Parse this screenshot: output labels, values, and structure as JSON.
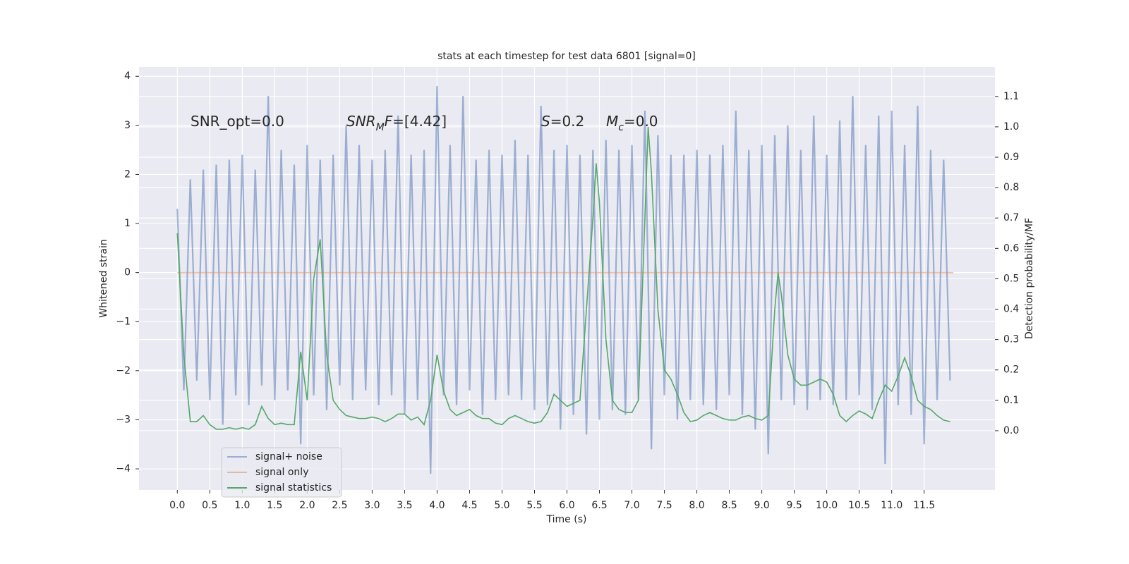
{
  "chart_data": {
    "type": "line",
    "title": "stats at each timestep for test data 6801 [signal=0]",
    "xlabel": "Time (s)",
    "ylabel": "Whitened strain",
    "y2label": "Detection probability/MF",
    "xlim": [
      -0.59,
      12.59
    ],
    "ylim": [
      -4.43,
      4.19
    ],
    "y2lim": [
      -0.195,
      1.197
    ],
    "xticks": [
      {
        "value": 0,
        "label": "0.0"
      },
      0.5,
      {
        "value": 1,
        "label": "1.0"
      },
      1.5,
      {
        "value": 2,
        "label": "2.0"
      },
      2.5,
      {
        "value": 3,
        "label": "3.0"
      },
      3.5,
      {
        "value": 4,
        "label": "4.0"
      },
      4.5,
      {
        "value": 5,
        "label": "5.0"
      },
      5.5,
      {
        "value": 6,
        "label": "6.0"
      },
      6.5,
      {
        "value": 7,
        "label": "7.0"
      },
      7.5,
      {
        "value": 8,
        "label": "8.0"
      },
      8.5,
      {
        "value": 9,
        "label": "9.0"
      },
      9.5,
      {
        "value": 10,
        "label": "10.0"
      },
      10.5,
      {
        "value": 11,
        "label": "11.0"
      },
      11.5
    ],
    "yticks": [
      {
        "value": -4,
        "label": "−4"
      },
      {
        "value": -3,
        "label": "−3"
      },
      {
        "value": -2,
        "label": "−2"
      },
      {
        "value": -1,
        "label": "−1"
      },
      0,
      1,
      2,
      3,
      4
    ],
    "y2ticks": [
      {
        "value": 0,
        "label": "0.0"
      },
      0.1,
      0.2,
      0.3,
      0.4,
      0.5,
      0.6,
      0.7,
      0.8,
      0.9,
      {
        "value": 1,
        "label": "1.0"
      },
      1.1
    ],
    "grid": true,
    "legend": "lower left",
    "annotations": [
      {
        "parts": [
          {
            "text": "SNR_opt=0.0"
          }
        ]
      },
      {
        "parts": [
          {
            "text": "SNR",
            "style": "italic"
          },
          {
            "text": "M",
            "style": "sub"
          },
          {
            "text": "F",
            "style": "italic"
          },
          {
            "text": "=[4.42]"
          }
        ]
      },
      {
        "parts": [
          {
            "text": "S",
            "style": "italic"
          },
          {
            "text": "=0.2"
          }
        ]
      },
      {
        "parts": [
          {
            "text": "M",
            "style": "italic"
          },
          {
            "text": "c",
            "style": "sub"
          },
          {
            "text": "=0.0"
          }
        ]
      }
    ],
    "series": [
      {
        "name": "signal+ noise",
        "color": "#4c72b0",
        "opacity": 0.5,
        "x": [
          0,
          0.1,
          0.2,
          0.3,
          0.4,
          0.5,
          0.6,
          0.7,
          0.8,
          0.9,
          1,
          1.1,
          1.2,
          1.3,
          1.4,
          1.5,
          1.6,
          1.7,
          1.8,
          1.9,
          2,
          2.1,
          2.2,
          2.3,
          2.4,
          2.5,
          2.6,
          2.7,
          2.8,
          2.9,
          3,
          3.1,
          3.2,
          3.3,
          3.4,
          3.5,
          3.6,
          3.7,
          3.8,
          3.9,
          4,
          4.1,
          4.2,
          4.3,
          4.4,
          4.5,
          4.6,
          4.7,
          4.8,
          4.9,
          5,
          5.1,
          5.2,
          5.3,
          5.4,
          5.5,
          5.6,
          5.7,
          5.8,
          5.9,
          6,
          6.1,
          6.2,
          6.3,
          6.4,
          6.5,
          6.6,
          6.7,
          6.8,
          6.9,
          7,
          7.1,
          7.2,
          7.3,
          7.4,
          7.5,
          7.6,
          7.7,
          7.8,
          7.9,
          8,
          8.1,
          8.2,
          8.3,
          8.4,
          8.5,
          8.6,
          8.7,
          8.8,
          8.9,
          9,
          9.1,
          9.2,
          9.3,
          9.4,
          9.5,
          9.6,
          9.7,
          9.8,
          9.9,
          10,
          10.1,
          10.2,
          10.3,
          10.4,
          10.5,
          10.6,
          10.7,
          10.8,
          10.9,
          11,
          11.1,
          11.2,
          11.3,
          11.4,
          11.5,
          11.6,
          11.7,
          11.8,
          11.9
        ],
        "values": [
          1.3,
          -2.4,
          1.9,
          -2.2,
          2.1,
          -2.6,
          2.2,
          -3.1,
          2.3,
          -2.5,
          2.4,
          -2.7,
          2.1,
          -2.3,
          3.6,
          -2.6,
          2.5,
          -2.4,
          2.2,
          -3.5,
          2.6,
          -2.5,
          2.3,
          -2.8,
          2.4,
          -2.3,
          3.0,
          -2.6,
          2.6,
          -2.4,
          2.3,
          -2.7,
          2.5,
          -2.5,
          3.2,
          -2.9,
          2.4,
          -2.6,
          2.5,
          -4.1,
          3.8,
          -2.5,
          2.6,
          -2.7,
          3.6,
          -2.4,
          2.3,
          -2.9,
          2.5,
          -2.6,
          2.4,
          -2.5,
          2.7,
          -2.6,
          2.4,
          -2.8,
          3.4,
          -2.7,
          2.5,
          -3.2,
          2.6,
          -2.9,
          2.4,
          -3.3,
          2.5,
          -3.0,
          2.7,
          -2.8,
          2.5,
          -2.9,
          2.6,
          -2.6,
          3.3,
          -3.6,
          2.8,
          -2.5,
          2.4,
          -3.0,
          2.4,
          -2.6,
          2.5,
          -2.7,
          2.4,
          -2.8,
          2.6,
          -2.5,
          3.3,
          -2.9,
          2.5,
          -3.2,
          2.6,
          -3.7,
          2.8,
          -2.6,
          3.0,
          -2.7,
          2.5,
          -2.8,
          3.2,
          -2.6,
          2.4,
          -2.7,
          3.1,
          -2.6,
          3.6,
          -2.5,
          2.6,
          -2.8,
          3.2,
          -3.9,
          3.3,
          -2.7,
          2.6,
          -2.9,
          3.4,
          -3.5,
          2.5,
          -2.6,
          2.3,
          -2.2
        ]
      },
      {
        "name": "signal only",
        "color": "#dd8452",
        "opacity": 0.5,
        "x": [
          0,
          11.95
        ],
        "values": [
          0,
          0
        ]
      },
      {
        "name": "signal statistics",
        "color": "#55a868",
        "axis": "y2",
        "x": [
          0,
          0.1,
          0.2,
          0.3,
          0.4,
          0.5,
          0.6,
          0.7,
          0.8,
          0.9,
          1,
          1.1,
          1.2,
          1.3,
          1.4,
          1.5,
          1.6,
          1.7,
          1.8,
          1.9,
          2,
          2.1,
          2.2,
          2.3,
          2.4,
          2.5,
          2.6,
          2.7,
          2.8,
          2.9,
          3,
          3.1,
          3.2,
          3.3,
          3.4,
          3.5,
          3.6,
          3.7,
          3.8,
          3.9,
          4,
          4.1,
          4.2,
          4.3,
          4.4,
          4.5,
          4.6,
          4.7,
          4.8,
          4.9,
          5,
          5.1,
          5.2,
          5.3,
          5.4,
          5.5,
          5.6,
          5.7,
          5.8,
          5.9,
          6,
          6.1,
          6.2,
          6.3,
          6.4,
          6.45,
          6.5,
          6.6,
          6.7,
          6.8,
          6.9,
          7,
          7.1,
          7.2,
          7.25,
          7.3,
          7.4,
          7.5,
          7.6,
          7.7,
          7.8,
          7.9,
          8,
          8.1,
          8.2,
          8.3,
          8.4,
          8.5,
          8.6,
          8.7,
          8.8,
          8.9,
          9,
          9.1,
          9.2,
          9.25,
          9.3,
          9.4,
          9.5,
          9.6,
          9.7,
          9.8,
          9.9,
          10,
          10.1,
          10.2,
          10.3,
          10.4,
          10.5,
          10.6,
          10.7,
          10.8,
          10.9,
          11,
          11.1,
          11.2,
          11.3,
          11.4,
          11.5,
          11.6,
          11.7,
          11.8,
          11.9
        ],
        "values": [
          0.65,
          0.25,
          0.03,
          0.03,
          0.05,
          0.02,
          0.005,
          0.005,
          0.01,
          0.005,
          0.01,
          0.005,
          0.02,
          0.08,
          0.04,
          0.02,
          0.025,
          0.02,
          0.02,
          0.26,
          0.1,
          0.5,
          0.63,
          0.25,
          0.1,
          0.07,
          0.05,
          0.045,
          0.04,
          0.04,
          0.045,
          0.04,
          0.03,
          0.04,
          0.055,
          0.055,
          0.035,
          0.045,
          0.02,
          0.1,
          0.25,
          0.13,
          0.07,
          0.05,
          0.06,
          0.07,
          0.05,
          0.04,
          0.04,
          0.025,
          0.02,
          0.04,
          0.05,
          0.04,
          0.03,
          0.025,
          0.03,
          0.06,
          0.12,
          0.1,
          0.08,
          0.09,
          0.1,
          0.4,
          0.7,
          0.88,
          0.75,
          0.3,
          0.1,
          0.07,
          0.06,
          0.06,
          0.1,
          0.7,
          1.0,
          0.85,
          0.4,
          0.2,
          0.17,
          0.12,
          0.06,
          0.03,
          0.035,
          0.05,
          0.06,
          0.05,
          0.04,
          0.035,
          0.035,
          0.045,
          0.05,
          0.04,
          0.035,
          0.05,
          0.4,
          0.52,
          0.45,
          0.25,
          0.17,
          0.15,
          0.15,
          0.16,
          0.17,
          0.16,
          0.12,
          0.05,
          0.03,
          0.05,
          0.065,
          0.055,
          0.04,
          0.1,
          0.15,
          0.13,
          0.18,
          0.24,
          0.18,
          0.1,
          0.08,
          0.07,
          0.05,
          0.035,
          0.03
        ]
      }
    ]
  }
}
